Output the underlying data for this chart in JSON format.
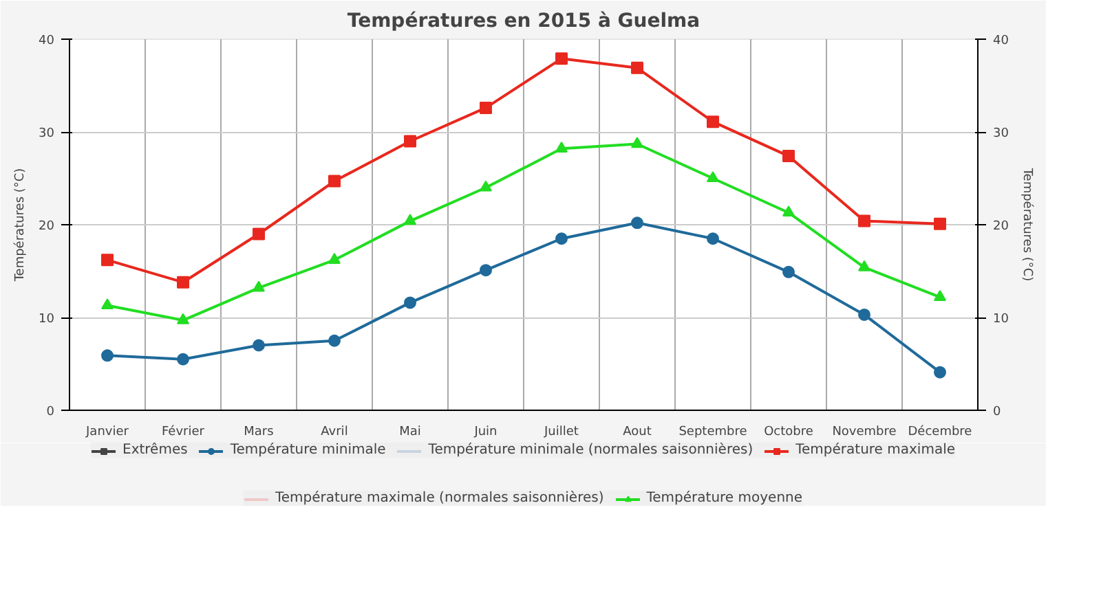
{
  "chart_data": {
    "type": "line",
    "title": "Températures en 2015 à Guelma",
    "ylabel": "Températures (°C)",
    "y2label": "Températures (°C)",
    "categories": [
      "Janvier",
      "Février",
      "Mars",
      "Avril",
      "Mai",
      "Juin",
      "Juillet",
      "Aout",
      "Septembre",
      "Octobre",
      "Novembre",
      "Décembre"
    ],
    "series": [
      {
        "name": "Extrêmes",
        "marker": "square",
        "color": "#444444",
        "values": [
          null,
          null,
          null,
          null,
          null,
          null,
          null,
          null,
          null,
          null,
          null,
          null
        ]
      },
      {
        "name": "Température minimale",
        "color": "#1f6a9a",
        "marker": "circle",
        "values": [
          5.9,
          5.5,
          7.0,
          7.5,
          11.6,
          15.1,
          18.5,
          20.2,
          18.5,
          14.9,
          10.3,
          4.1
        ]
      },
      {
        "name": "Température minimale (normales saisonnières)",
        "color": "#c8d4e0",
        "values": [
          null,
          null,
          null,
          null,
          null,
          null,
          null,
          null,
          null,
          null,
          null,
          null
        ]
      },
      {
        "name": "Température maximale",
        "color": "#e8281e",
        "marker": "square",
        "values": [
          16.2,
          13.8,
          19.0,
          24.7,
          29.0,
          32.6,
          37.9,
          36.9,
          31.1,
          27.4,
          20.4,
          20.1
        ]
      },
      {
        "name": "Température maximale (normales saisonnières)",
        "color": "#f0c8c8",
        "values": [
          null,
          null,
          null,
          null,
          null,
          null,
          null,
          null,
          null,
          null,
          null,
          null
        ]
      },
      {
        "name": "Température moyenne",
        "color": "#22dd22",
        "marker": "triangle",
        "values": [
          11.3,
          9.7,
          13.2,
          16.2,
          20.4,
          24.0,
          28.2,
          28.7,
          25.0,
          21.3,
          15.4,
          12.2
        ]
      }
    ],
    "ylim": [
      0,
      40
    ],
    "yticks": [
      0,
      10,
      20,
      30,
      40
    ],
    "y2lim": [
      0,
      40
    ],
    "y2ticks": [
      0,
      10,
      20,
      30,
      40
    ],
    "grid": true,
    "legend": "bottom",
    "line_style": "solid"
  }
}
